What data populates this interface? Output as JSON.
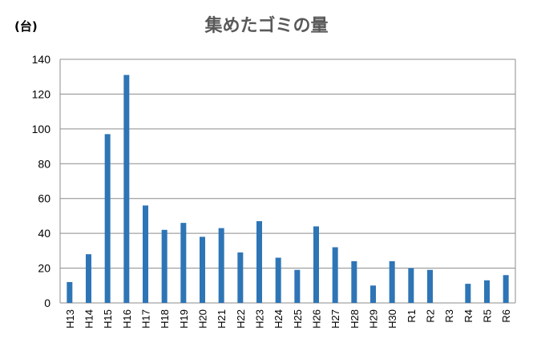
{
  "chart_data": {
    "type": "bar",
    "title": "集めたゴミの量",
    "ylabel": "(台)",
    "xlabel": "",
    "ylim": [
      0,
      140
    ],
    "yticks": [
      0,
      20,
      40,
      60,
      80,
      100,
      120,
      140
    ],
    "grid": true,
    "bar_color": "#2E75B6",
    "categories": [
      "H13",
      "H14",
      "H15",
      "H16",
      "H17",
      "H18",
      "H19",
      "H20",
      "H21",
      "H22",
      "H23",
      "H24",
      "H25",
      "H26",
      "H27",
      "H28",
      "H29",
      "H30",
      "R1",
      "R2",
      "R3",
      "R4",
      "R5",
      "R6"
    ],
    "values": [
      12,
      28,
      97,
      131,
      56,
      42,
      46,
      38,
      43,
      29,
      47,
      26,
      19,
      44,
      32,
      24,
      10,
      24,
      20,
      19,
      0,
      11,
      13,
      16
    ]
  }
}
